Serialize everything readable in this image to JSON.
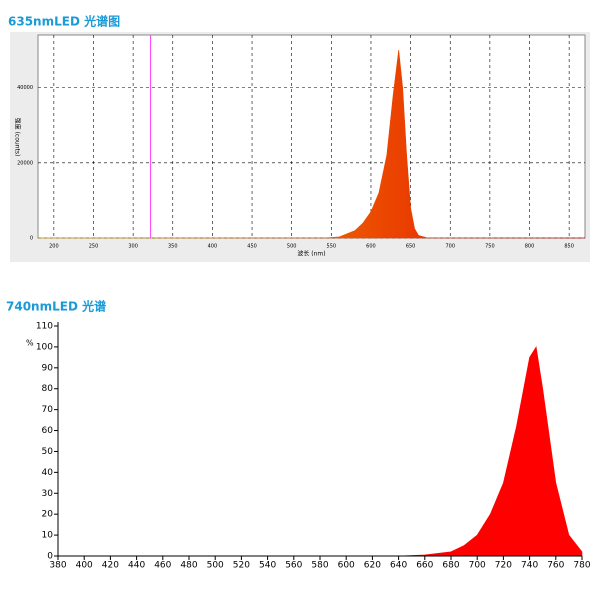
{
  "chart_data": [
    {
      "type": "area",
      "title": "635nmLED 光谱图",
      "xlabel": "波长 (nm)",
      "ylabel": "强度 (counts)",
      "x": [
        180,
        540,
        560,
        580,
        590,
        600,
        610,
        620,
        628,
        635,
        640,
        645,
        650,
        655,
        660,
        670,
        690,
        870
      ],
      "values": [
        0,
        0,
        300,
        2000,
        4000,
        7000,
        12000,
        22000,
        38000,
        50000,
        40000,
        22000,
        8000,
        2500,
        700,
        100,
        0,
        0
      ],
      "xlim": [
        180,
        870
      ],
      "ylim": [
        0,
        54000
      ],
      "xticks": [
        200,
        250,
        300,
        350,
        400,
        450,
        500,
        550,
        600,
        650,
        700,
        750,
        800,
        850
      ],
      "yticks": [
        0,
        20000,
        40000
      ],
      "grid": true,
      "gradient": [
        "#ffc000",
        "#e00000"
      ],
      "vline": 322,
      "vline_color": "#ff40ff"
    },
    {
      "type": "area",
      "title": "740nmLED 光谱",
      "ylabel": "%",
      "x": [
        380,
        640,
        660,
        680,
        690,
        700,
        710,
        720,
        730,
        740,
        745,
        750,
        760,
        770,
        780
      ],
      "values": [
        0,
        0,
        0.5,
        2,
        5,
        10,
        20,
        35,
        62,
        95,
        100,
        80,
        35,
        10,
        2
      ],
      "xlim": [
        380,
        780
      ],
      "ylim": [
        0,
        110
      ],
      "xticks": [
        380,
        400,
        420,
        440,
        460,
        480,
        500,
        520,
        540,
        560,
        580,
        600,
        620,
        640,
        660,
        680,
        700,
        720,
        740,
        760,
        780
      ],
      "yticks": [
        0,
        10,
        20,
        30,
        40,
        50,
        60,
        70,
        80,
        90,
        100,
        110
      ],
      "grid": false,
      "color": "#ff0000"
    }
  ]
}
